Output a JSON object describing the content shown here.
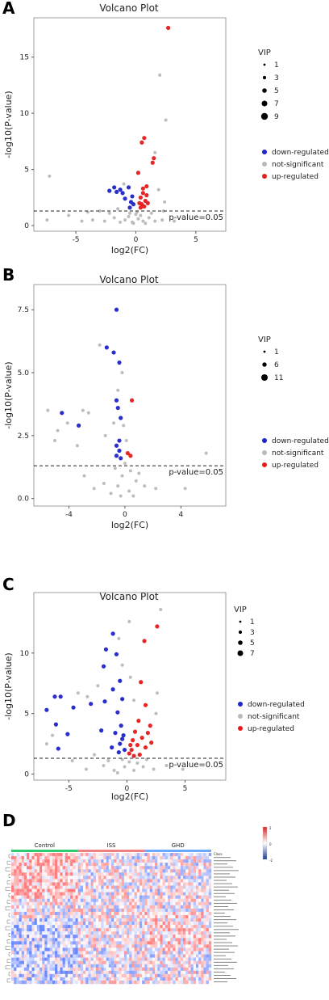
{
  "panels": [
    {
      "label": "A"
    },
    {
      "label": "B"
    },
    {
      "label": "C"
    },
    {
      "label": "D"
    }
  ],
  "colors": {
    "down": "#1f24c8",
    "ns": "#b9b9b9",
    "up": "#e51b1b",
    "heat_high": "#d62728",
    "heat_low": "#1f3d8a",
    "control_bar": "#2ecc71",
    "iss_bar": "#f08080",
    "ghd_bar": "#6aa9ff"
  },
  "chart_data": [
    {
      "type": "scatter",
      "title": "Volcano Plot",
      "xlabel": "log2(FC)",
      "ylabel": "-log10(P-value)",
      "xlim": [
        -8.5,
        7.5
      ],
      "ylim": [
        -0.5,
        18.5
      ],
      "xticks": [
        -5,
        0,
        5
      ],
      "yticks": [
        0,
        5,
        10,
        15
      ],
      "threshold": 1.3,
      "threshold_label": "p-value=0.05",
      "legend_size_title": "VIP",
      "legend_sizes": [
        "1",
        "3",
        "5",
        "7",
        "9"
      ],
      "legend_groups": [
        "down-regulated",
        "not-significant",
        "up-regulated"
      ],
      "series": [
        {
          "name": "down-regulated",
          "group": "down",
          "points": [
            [
              -2.2,
              3.1
            ],
            [
              -1.6,
              3.0
            ],
            [
              -1.3,
              3.2
            ],
            [
              -0.6,
              3.4
            ],
            [
              -0.9,
              2.4
            ],
            [
              -0.4,
              2.1
            ],
            [
              -0.2,
              1.9
            ],
            [
              -1.1,
              2.9
            ],
            [
              -0.3,
              2.6
            ],
            [
              -1.8,
              3.4
            ],
            [
              -0.5,
              1.6
            ]
          ]
        },
        {
          "name": "up-regulated",
          "group": "up",
          "points": [
            [
              2.7,
              17.6
            ],
            [
              0.7,
              7.8
            ],
            [
              0.5,
              7.4
            ],
            [
              1.5,
              6.0
            ],
            [
              1.4,
              5.6
            ],
            [
              0.2,
              4.7
            ],
            [
              0.9,
              3.5
            ],
            [
              0.6,
              2.9
            ],
            [
              0.4,
              2.5
            ],
            [
              0.8,
              2.2
            ],
            [
              0.5,
              1.9
            ],
            [
              0.7,
              1.7
            ],
            [
              0.3,
              2.0
            ],
            [
              0.9,
              2.7
            ],
            [
              0.6,
              3.3
            ],
            [
              0.4,
              1.6
            ],
            [
              1.0,
              2.0
            ]
          ]
        },
        {
          "name": "not-significant",
          "group": "ns",
          "points": [
            [
              2.0,
              13.4
            ],
            [
              2.5,
              9.4
            ],
            [
              1.6,
              6.5
            ],
            [
              -7.2,
              4.4
            ],
            [
              -3.0,
              1.3
            ],
            [
              -1.0,
              3.7
            ],
            [
              1.9,
              3.2
            ],
            [
              2.4,
              2.1
            ],
            [
              2.3,
              1.3
            ],
            [
              -5.6,
              0.9
            ],
            [
              -7.4,
              0.5
            ],
            [
              -4.5,
              0.4
            ],
            [
              -3.6,
              0.5
            ],
            [
              -2.6,
              0.4
            ],
            [
              -1.8,
              0.7
            ],
            [
              -0.9,
              0.5
            ],
            [
              -0.3,
              0.3
            ],
            [
              0.2,
              0.6
            ],
            [
              0.6,
              0.4
            ],
            [
              1.1,
              0.7
            ],
            [
              1.6,
              0.4
            ],
            [
              2.2,
              0.5
            ],
            [
              3.2,
              0.4
            ],
            [
              0.0,
              1.0
            ],
            [
              -0.5,
              1.1
            ],
            [
              0.4,
              0.9
            ],
            [
              -0.2,
              0.2
            ],
            [
              0.8,
              0.2
            ],
            [
              -1.3,
              0.3
            ],
            [
              -4.0,
              1.2
            ],
            [
              -2.2,
              1.1
            ],
            [
              -1.5,
              1.5
            ],
            [
              1.3,
              1.1
            ],
            [
              0.1,
              1.2
            ],
            [
              -0.6,
              0.8
            ]
          ]
        }
      ]
    },
    {
      "type": "scatter",
      "title": "Volcano Plot",
      "xlabel": "log2(FC)",
      "ylabel": "-log10(P-value)",
      "xlim": [
        -6.5,
        7.2
      ],
      "ylim": [
        -0.3,
        8.5
      ],
      "xticks": [
        -4,
        0,
        4
      ],
      "yticks": [
        0.0,
        2.5,
        5.0,
        7.5
      ],
      "threshold": 1.3,
      "threshold_label": "p-value=0.05",
      "legend_size_title": "VIP",
      "legend_sizes": [
        "1",
        "6",
        "11"
      ],
      "legend_groups": [
        "down-regulated",
        "not-significant",
        "up-regulated"
      ],
      "series": [
        {
          "name": "down-regulated",
          "group": "down",
          "points": [
            [
              -0.6,
              7.5
            ],
            [
              -1.3,
              6.0
            ],
            [
              -0.8,
              5.8
            ],
            [
              -0.4,
              5.4
            ],
            [
              -4.5,
              3.4
            ],
            [
              -3.3,
              2.9
            ],
            [
              -0.6,
              3.9
            ],
            [
              -0.5,
              3.6
            ],
            [
              -0.3,
              3.2
            ],
            [
              -0.6,
              2.1
            ],
            [
              -0.4,
              1.9
            ],
            [
              -0.3,
              1.6
            ],
            [
              -0.6,
              1.7
            ],
            [
              -0.4,
              2.3
            ]
          ]
        },
        {
          "name": "up-regulated",
          "group": "up",
          "points": [
            [
              0.5,
              3.9
            ],
            [
              0.4,
              1.7
            ],
            [
              0.2,
              1.8
            ]
          ]
        },
        {
          "name": "not-significant",
          "group": "ns",
          "points": [
            [
              -1.8,
              6.1
            ],
            [
              -0.2,
              5.0
            ],
            [
              -0.5,
              4.3
            ],
            [
              -5.5,
              3.5
            ],
            [
              -3.0,
              3.5
            ],
            [
              -2.6,
              3.4
            ],
            [
              -4.1,
              3.0
            ],
            [
              -4.8,
              2.7
            ],
            [
              -5.0,
              2.3
            ],
            [
              -3.4,
              2.1
            ],
            [
              5.8,
              1.8
            ],
            [
              -1.4,
              2.5
            ],
            [
              -0.1,
              2.9
            ],
            [
              0.1,
              2.3
            ],
            [
              -0.8,
              3.0
            ],
            [
              -2.2,
              0.4
            ],
            [
              -1.5,
              0.6
            ],
            [
              -1.0,
              0.2
            ],
            [
              -0.5,
              0.5
            ],
            [
              0.3,
              0.3
            ],
            [
              0.8,
              0.7
            ],
            [
              1.4,
              0.5
            ],
            [
              2.2,
              0.4
            ],
            [
              4.3,
              0.4
            ],
            [
              -2.9,
              0.9
            ],
            [
              -0.2,
              0.9
            ],
            [
              0.4,
              1.1
            ],
            [
              -0.3,
              0.1
            ],
            [
              0.0,
              1.4
            ],
            [
              1.0,
              1.0
            ],
            [
              -0.7,
              1.2
            ],
            [
              0.6,
              0.1
            ]
          ]
        }
      ]
    },
    {
      "type": "scatter",
      "title": "Volcano Plot",
      "xlabel": "log2(FC)",
      "ylabel": "-log10(P-value)",
      "xlim": [
        -8,
        8.5
      ],
      "ylim": [
        -0.5,
        15
      ],
      "xticks": [
        -5,
        0,
        5
      ],
      "yticks": [
        0,
        5,
        10
      ],
      "threshold": 1.3,
      "threshold_label": "p-value=0.05",
      "legend_size_title": "VIP",
      "legend_sizes": [
        "1",
        "3",
        "5",
        "7"
      ],
      "legend_groups": [
        "down-regulated",
        "not-significant",
        "up-regulated"
      ],
      "series": [
        {
          "name": "down-regulated",
          "group": "down",
          "points": [
            [
              -6.2,
              6.4
            ],
            [
              -5.7,
              6.4
            ],
            [
              -6.9,
              5.3
            ],
            [
              -6.1,
              4.1
            ],
            [
              -5.1,
              3.3
            ],
            [
              -4.6,
              5.5
            ],
            [
              -3.1,
              5.8
            ],
            [
              -5.9,
              2.1
            ],
            [
              -1.2,
              11.6
            ],
            [
              -1.8,
              10.3
            ],
            [
              -0.9,
              9.9
            ],
            [
              -2.0,
              8.9
            ],
            [
              -0.6,
              7.7
            ],
            [
              -1.2,
              7.0
            ],
            [
              -0.4,
              6.2
            ],
            [
              -1.9,
              6.0
            ],
            [
              -0.8,
              5.1
            ],
            [
              -0.5,
              4.0
            ],
            [
              -0.3,
              3.2
            ],
            [
              -1.0,
              3.4
            ],
            [
              -0.6,
              2.5
            ],
            [
              -0.2,
              2.0
            ],
            [
              -1.3,
              2.2
            ],
            [
              -2.2,
              3.6
            ],
            [
              -0.7,
              1.8
            ],
            [
              -0.4,
              2.9
            ]
          ]
        },
        {
          "name": "up-regulated",
          "group": "up",
          "points": [
            [
              1.5,
              11.0
            ],
            [
              1.2,
              7.6
            ],
            [
              2.6,
              12.2
            ],
            [
              1.6,
              5.7
            ],
            [
              1.0,
              4.4
            ],
            [
              2.0,
              4.0
            ],
            [
              0.7,
              3.5
            ],
            [
              0.5,
              2.8
            ],
            [
              1.3,
              3.0
            ],
            [
              0.9,
              2.4
            ],
            [
              0.4,
              2.0
            ],
            [
              0.2,
              1.7
            ],
            [
              1.6,
              2.2
            ],
            [
              2.1,
              2.6
            ],
            [
              0.6,
              1.5
            ],
            [
              1.1,
              1.6
            ],
            [
              1.8,
              3.4
            ],
            [
              0.3,
              2.4
            ]
          ]
        },
        {
          "name": "not-significant",
          "group": "ns",
          "points": [
            [
              2.9,
              13.6
            ],
            [
              -0.7,
              11.2
            ],
            [
              0.2,
              12.6
            ],
            [
              -0.4,
              9.0
            ],
            [
              0.3,
              8.0
            ],
            [
              -2.5,
              7.3
            ],
            [
              -3.4,
              6.4
            ],
            [
              -4.2,
              6.7
            ],
            [
              0.6,
              6.1
            ],
            [
              2.6,
              6.7
            ],
            [
              2.5,
              5.0
            ],
            [
              -2.8,
              1.6
            ],
            [
              -6.4,
              3.2
            ],
            [
              -6.9,
              2.5
            ],
            [
              -4.7,
              1.1
            ],
            [
              -3.5,
              0.4
            ],
            [
              -2.0,
              0.7
            ],
            [
              -1.1,
              0.3
            ],
            [
              -0.2,
              0.6
            ],
            [
              0.6,
              0.3
            ],
            [
              1.4,
              0.6
            ],
            [
              2.3,
              0.4
            ],
            [
              3.4,
              0.7
            ],
            [
              4.8,
              0.4
            ],
            [
              -0.4,
              1.2
            ],
            [
              0.2,
              1.0
            ],
            [
              0.9,
              0.9
            ],
            [
              -1.6,
              1.1
            ],
            [
              1.7,
              1.2
            ],
            [
              -0.8,
              0.1
            ]
          ]
        }
      ]
    },
    {
      "type": "heatmap",
      "groups": [
        "Control",
        "ISS",
        "GHD"
      ],
      "group_counts": [
        26,
        26,
        26
      ],
      "rows": 40,
      "legend_ticks": [
        "2",
        "0",
        "-2"
      ],
      "row_label_first": "Class"
    }
  ]
}
